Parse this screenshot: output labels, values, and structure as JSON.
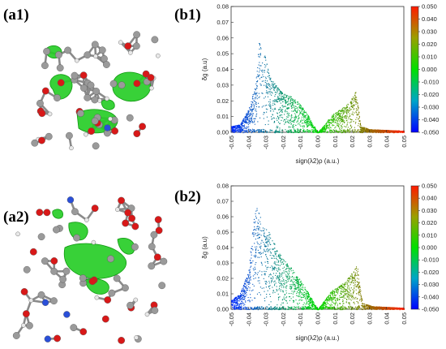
{
  "labels": {
    "a1": "(a1)",
    "b1": "(b1)",
    "a2": "(a2)",
    "b2": "(b2)"
  },
  "colorbar_gradient": [
    "#ff0000",
    "#00cc00",
    "#0000ff"
  ],
  "chart_data": [
    {
      "type": "scatter",
      "xlabel": "sign(λ2)ρ (a.u.)",
      "ylabel": "δg (a.u)",
      "xlim": [
        -0.05,
        0.05
      ],
      "ylim": [
        0.0,
        0.08
      ],
      "x_ticks": [
        "-0.05",
        "-0.04",
        "-0.03",
        "-0.02",
        "-0.01",
        "0.00",
        "0.01",
        "0.02",
        "0.03",
        "0.04",
        "0.05"
      ],
      "y_ticks": [
        "0.00",
        "0.01",
        "0.02",
        "0.03",
        "0.04",
        "0.05",
        "0.06",
        "0.07",
        "0.08"
      ],
      "colorbar_ticks": [
        "0.050",
        "0.040",
        "0.030",
        "0.020",
        "0.010",
        "0.000",
        "-0.010",
        "-0.020",
        "-0.030",
        "-0.040",
        "-0.050"
      ],
      "envelope": [
        [
          -0.05,
          0.004
        ],
        [
          -0.045,
          0.005
        ],
        [
          -0.04,
          0.015
        ],
        [
          -0.036,
          0.03
        ],
        [
          -0.034,
          0.058
        ],
        [
          -0.03,
          0.047
        ],
        [
          -0.027,
          0.034
        ],
        [
          -0.024,
          0.03
        ],
        [
          -0.02,
          0.025
        ],
        [
          -0.015,
          0.023
        ],
        [
          -0.01,
          0.018
        ],
        [
          -0.005,
          0.01
        ],
        [
          -0.002,
          0.004
        ],
        [
          0.0,
          0.0
        ],
        [
          0.004,
          0.005
        ],
        [
          0.008,
          0.011
        ],
        [
          0.012,
          0.014
        ],
        [
          0.016,
          0.017
        ],
        [
          0.02,
          0.022
        ],
        [
          0.022,
          0.026
        ],
        [
          0.023,
          0.02
        ],
        [
          0.025,
          0.004
        ],
        [
          0.03,
          0.002
        ],
        [
          0.05,
          0.001
        ]
      ]
    },
    {
      "type": "scatter",
      "xlabel": "sign(λ2)ρ (a.u.)",
      "ylabel": "δg (a.u)",
      "xlim": [
        -0.05,
        0.05
      ],
      "ylim": [
        0.0,
        0.08
      ],
      "x_ticks": [
        "-0.05",
        "-0.04",
        "-0.03",
        "-0.02",
        "-0.01",
        "0.00",
        "0.01",
        "0.02",
        "0.03",
        "0.04",
        "0.05"
      ],
      "y_ticks": [
        "0.00",
        "0.01",
        "0.02",
        "0.03",
        "0.04",
        "0.05",
        "0.06",
        "0.07",
        "0.08"
      ],
      "colorbar_ticks": [
        "0.050",
        "0.040",
        "0.030",
        "0.020",
        "0.010",
        "0.000",
        "-0.010",
        "-0.020",
        "-0.030",
        "-0.040",
        "-0.050"
      ],
      "envelope": [
        [
          -0.05,
          0.006
        ],
        [
          -0.045,
          0.01
        ],
        [
          -0.04,
          0.025
        ],
        [
          -0.037,
          0.06
        ],
        [
          -0.035,
          0.067
        ],
        [
          -0.032,
          0.055
        ],
        [
          -0.028,
          0.05
        ],
        [
          -0.024,
          0.04
        ],
        [
          -0.02,
          0.033
        ],
        [
          -0.016,
          0.028
        ],
        [
          -0.012,
          0.022
        ],
        [
          -0.008,
          0.016
        ],
        [
          -0.004,
          0.008
        ],
        [
          0.0,
          0.0
        ],
        [
          0.004,
          0.006
        ],
        [
          0.008,
          0.012
        ],
        [
          0.012,
          0.015
        ],
        [
          0.016,
          0.018
        ],
        [
          0.02,
          0.024
        ],
        [
          0.023,
          0.029
        ],
        [
          0.024,
          0.018
        ],
        [
          0.026,
          0.004
        ],
        [
          0.032,
          0.002
        ],
        [
          0.05,
          0.001
        ]
      ]
    }
  ]
}
